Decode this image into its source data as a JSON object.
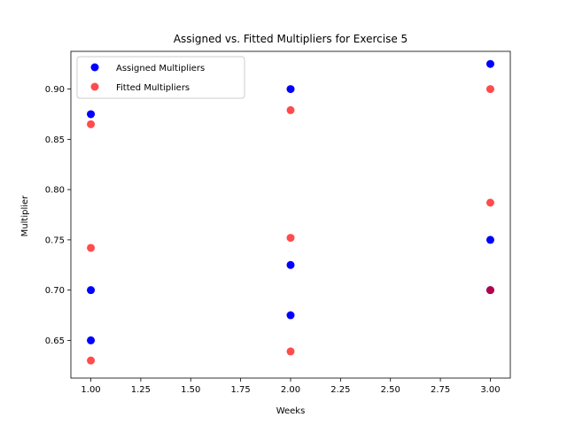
{
  "chart_data": {
    "type": "scatter",
    "title": "Assigned vs. Fitted Multipliers for Exercise 5",
    "xlabel": "Weeks",
    "ylabel": "Multiplier",
    "xlim": [
      0.9,
      3.1
    ],
    "ylim": [
      0.6125,
      0.9375
    ],
    "xticks": [
      1.0,
      1.25,
      1.5,
      1.75,
      2.0,
      2.25,
      2.5,
      2.75,
      3.0
    ],
    "xtick_labels": [
      "1.00",
      "1.25",
      "1.50",
      "1.75",
      "2.00",
      "2.25",
      "2.50",
      "2.75",
      "3.00"
    ],
    "yticks": [
      0.65,
      0.7,
      0.75,
      0.8,
      0.85,
      0.9
    ],
    "ytick_labels": [
      "0.65",
      "0.70",
      "0.75",
      "0.80",
      "0.85",
      "0.90"
    ],
    "grid": false,
    "legend_position": "top-left",
    "series": [
      {
        "name": "Assigned Multipliers",
        "color": "#0000ff",
        "alpha": 1.0,
        "points": [
          {
            "x": 1,
            "y": 0.875
          },
          {
            "x": 1,
            "y": 0.7
          },
          {
            "x": 1,
            "y": 0.65
          },
          {
            "x": 2,
            "y": 0.9
          },
          {
            "x": 2,
            "y": 0.725
          },
          {
            "x": 2,
            "y": 0.675
          },
          {
            "x": 3,
            "y": 0.925
          },
          {
            "x": 3,
            "y": 0.75
          },
          {
            "x": 3,
            "y": 0.7
          }
        ]
      },
      {
        "name": "Fitted Multipliers",
        "color": "#ff0000",
        "alpha": 0.7,
        "points": [
          {
            "x": 1,
            "y": 0.865
          },
          {
            "x": 1,
            "y": 0.742
          },
          {
            "x": 1,
            "y": 0.63
          },
          {
            "x": 2,
            "y": 0.879
          },
          {
            "x": 2,
            "y": 0.752
          },
          {
            "x": 2,
            "y": 0.639
          },
          {
            "x": 3,
            "y": 0.9
          },
          {
            "x": 3,
            "y": 0.787
          },
          {
            "x": 3,
            "y": 0.7
          }
        ]
      }
    ]
  }
}
